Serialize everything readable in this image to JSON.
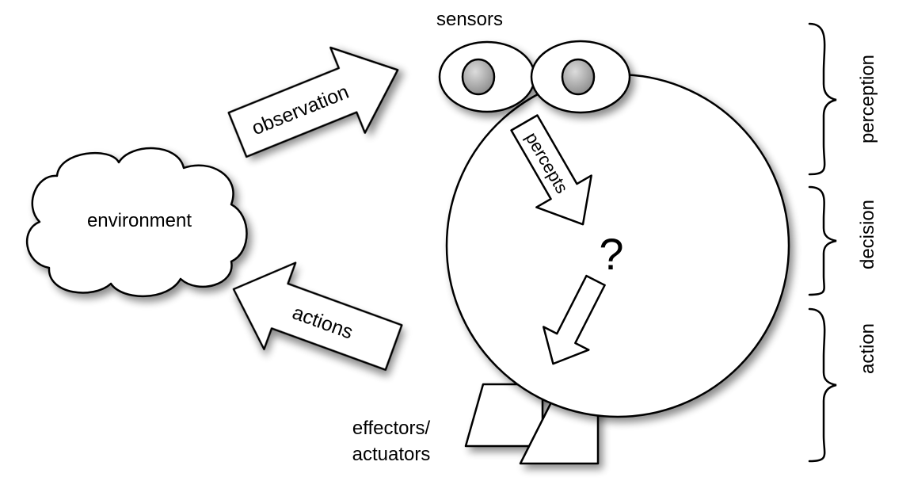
{
  "labels": {
    "environment": "environment",
    "sensors": "sensors",
    "observation": "observation",
    "actions": "actions",
    "percepts": "percepts",
    "decision_mark": "?",
    "effectors_line1": "effectors/",
    "effectors_line2": "actuators"
  },
  "stages": {
    "perception": "perception",
    "decision": "decision",
    "action": "action"
  }
}
